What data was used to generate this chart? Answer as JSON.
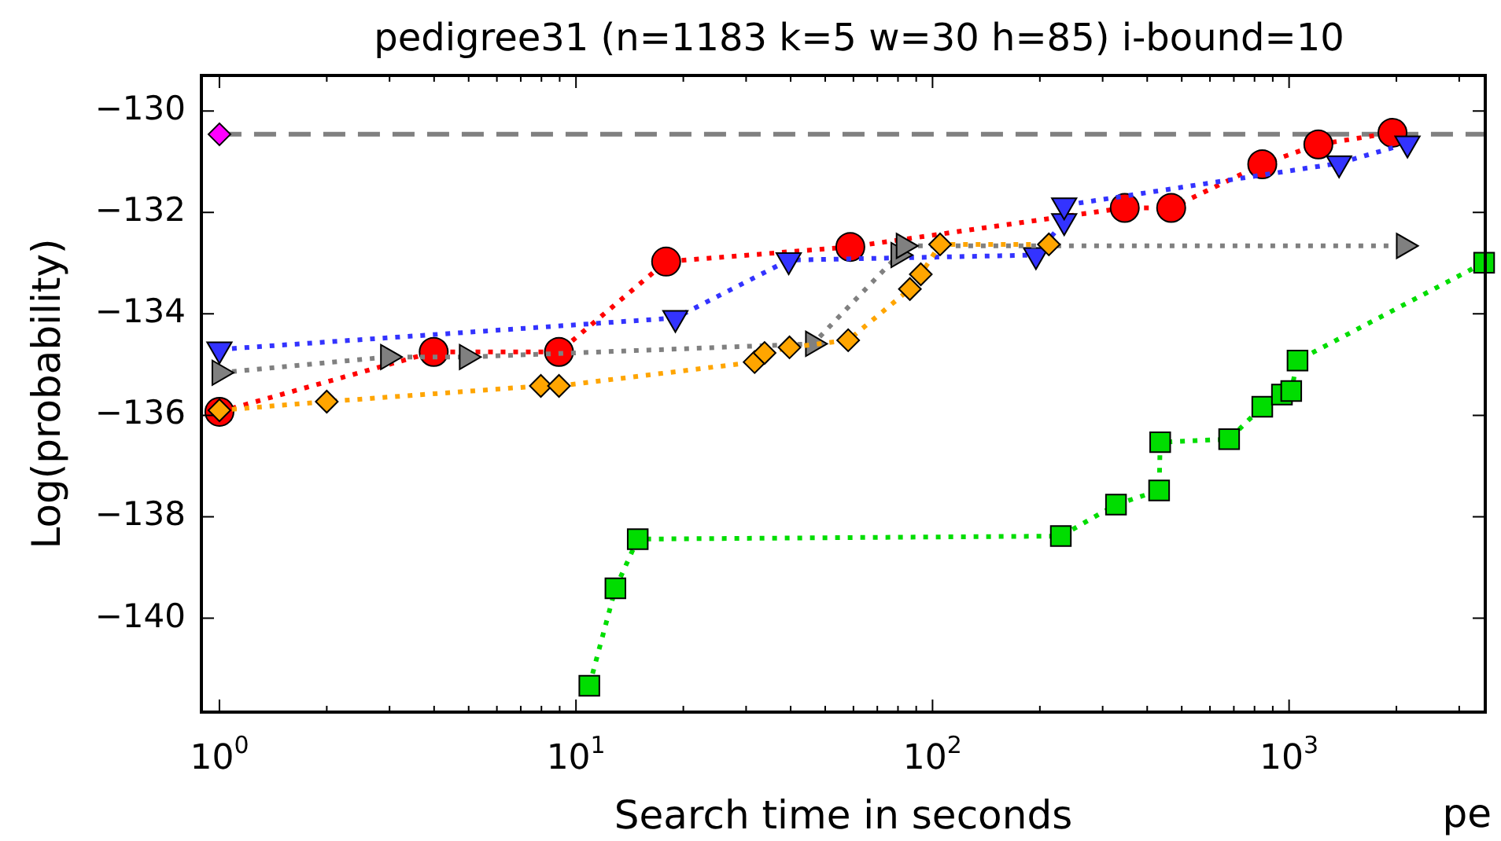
{
  "chart_data": {
    "type": "line",
    "title": "pedigree31 (n=1183 k=5 w=30 h=85) i-bound=10",
    "xlabel": "Search time in seconds",
    "ylabel": "Log(probability)",
    "log": "x",
    "line_style": "dotted",
    "xlim": [
      0.89,
      3550
    ],
    "ylim": [
      -141.85,
      -129.3
    ],
    "xticks": [
      {
        "value": 1,
        "label": "10$^{0}$"
      },
      {
        "value": 2,
        "label": null
      },
      {
        "value": 3,
        "label": null
      },
      {
        "value": 4,
        "label": null
      },
      {
        "value": 5,
        "label": null
      },
      {
        "value": 6,
        "label": null
      },
      {
        "value": 7,
        "label": null
      },
      {
        "value": 8,
        "label": null
      },
      {
        "value": 9,
        "label": null
      },
      {
        "value": 10,
        "label": "10$^{1}$"
      },
      {
        "value": 20,
        "label": null
      },
      {
        "value": 30,
        "label": null
      },
      {
        "value": 40,
        "label": null
      },
      {
        "value": 50,
        "label": null
      },
      {
        "value": 60,
        "label": null
      },
      {
        "value": 70,
        "label": null
      },
      {
        "value": 80,
        "label": null
      },
      {
        "value": 90,
        "label": null
      },
      {
        "value": 100,
        "label": "10$^{2}$"
      },
      {
        "value": 200,
        "label": null
      },
      {
        "value": 300,
        "label": null
      },
      {
        "value": 400,
        "label": null
      },
      {
        "value": 500,
        "label": null
      },
      {
        "value": 600,
        "label": null
      },
      {
        "value": 700,
        "label": null
      },
      {
        "value": 800,
        "label": null
      },
      {
        "value": 900,
        "label": null
      },
      {
        "value": 1000,
        "label": "10$^{3}$"
      },
      {
        "value": 2000,
        "label": null
      },
      {
        "value": 3000,
        "label": null
      }
    ],
    "yticks": [
      {
        "value": -130,
        "label": "−130"
      },
      {
        "value": -132,
        "label": "−132"
      },
      {
        "value": -134,
        "label": "−134"
      },
      {
        "value": -136,
        "label": "−136"
      },
      {
        "value": -138,
        "label": "−138"
      },
      {
        "value": -140,
        "label": "−140"
      }
    ],
    "ref_lines": [
      {
        "axis": "y",
        "value": -130.46,
        "color": "#808080",
        "line_style": "dashed"
      }
    ],
    "annotations": [
      "pe"
    ],
    "series": [
      {
        "type": "scatter",
        "color": "#ff00ff",
        "marker": "diamond",
        "x": [
          1
        ],
        "values": [
          -130.46
        ]
      },
      {
        "color": "#ffa500",
        "marker": "diamond",
        "x": [
          1,
          2,
          7.97,
          8.96,
          31.7,
          33.8,
          39.7,
          58,
          86.4,
          92.7,
          105,
          212
        ],
        "values": [
          -135.9,
          -135.73,
          -135.42,
          -135.42,
          -134.95,
          -134.77,
          -134.66,
          -134.52,
          -133.51,
          -133.22,
          -132.63,
          -132.63
        ]
      },
      {
        "color": "#808080",
        "marker": "triangle_right",
        "x": [
          1,
          2.97,
          4.94,
          46.2,
          80.2,
          83,
          2098
        ],
        "values": [
          -135.16,
          -134.85,
          -134.85,
          -134.59,
          -132.84,
          -132.66,
          -132.66
        ]
      },
      {
        "color": "#3333ff",
        "marker": "triangle_down",
        "x": [
          1,
          19,
          39.5,
          195,
          234,
          234,
          1381,
          2148
        ],
        "values": [
          -134.7,
          -134.08,
          -132.94,
          -132.84,
          -132.17,
          -131.86,
          -131.03,
          -130.64
        ]
      },
      {
        "color": "#ff0000",
        "marker": "circle",
        "x": [
          1,
          3.99,
          8.96,
          17.9,
          58.8,
          346,
          467,
          841,
          1208,
          1950
        ],
        "values": [
          -135.93,
          -134.75,
          -134.75,
          -132.97,
          -132.68,
          -131.91,
          -131.91,
          -131.05,
          -130.66,
          -130.43
        ]
      },
      {
        "color": "#00dd00",
        "marker": "square",
        "x": [
          10.9,
          12.9,
          14.9,
          229,
          327,
          432,
          435,
          679,
          841,
          955,
          1014,
          1056,
          3524
        ],
        "values": [
          -141.33,
          -139.41,
          -138.44,
          -138.38,
          -137.76,
          -137.48,
          -136.53,
          -136.47,
          -135.83,
          -135.59,
          -135.52,
          -134.92,
          -132.99
        ]
      }
    ]
  }
}
